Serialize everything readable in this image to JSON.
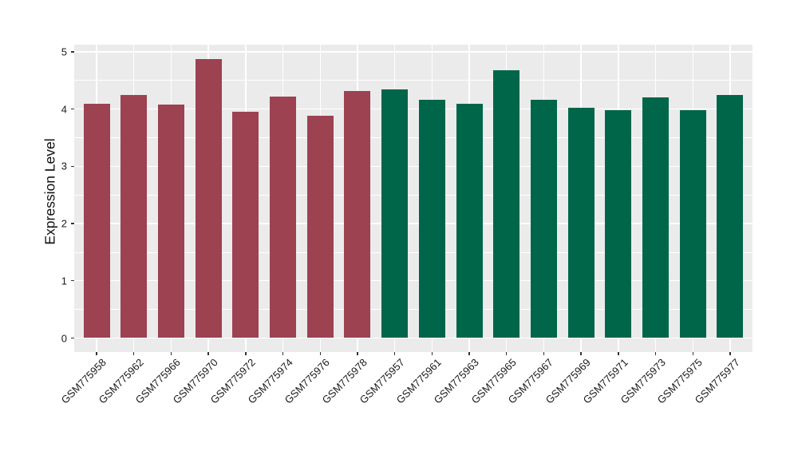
{
  "chart_data": {
    "type": "bar",
    "title": "",
    "ylabel": "Expression Level",
    "xlabel": "",
    "ylim": [
      0,
      5
    ],
    "yticks": [
      "0",
      "1",
      "2",
      "3",
      "4",
      "5"
    ],
    "ytick_values": [
      0,
      1,
      2,
      3,
      4,
      5
    ],
    "y_minor_gridlines": [
      0.5,
      1.5,
      2.5,
      3.5,
      4.5
    ],
    "x_tick_rotation": 45,
    "grid": "on",
    "legend_position": "none",
    "panel_background": "#EBEBEB",
    "grid_color": "#FFFFFF",
    "categories": [
      "GSM775958",
      "GSM775962",
      "GSM775966",
      "GSM775970",
      "GSM775972",
      "GSM775974",
      "GSM775976",
      "GSM775978",
      "GSM775957",
      "GSM775961",
      "GSM775963",
      "GSM775965",
      "GSM775967",
      "GSM775969",
      "GSM775971",
      "GSM775973",
      "GSM775975",
      "GSM775977"
    ],
    "values": [
      4.1,
      4.25,
      4.08,
      4.88,
      3.95,
      4.22,
      3.89,
      4.31,
      4.35,
      4.17,
      4.09,
      4.68,
      4.17,
      4.02,
      3.98,
      4.2,
      3.98,
      4.25
    ],
    "bar_colors": [
      "#9C4251",
      "#9C4251",
      "#9C4251",
      "#9C4251",
      "#9C4251",
      "#9C4251",
      "#9C4251",
      "#9C4251",
      "#006649",
      "#006649",
      "#006649",
      "#006649",
      "#006649",
      "#006649",
      "#006649",
      "#006649",
      "#006649",
      "#006649"
    ]
  }
}
